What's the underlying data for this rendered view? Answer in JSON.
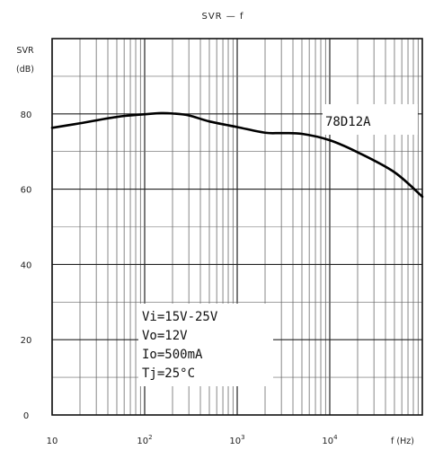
{
  "chart_data": {
    "type": "line",
    "title": "SVR — f",
    "ylabel": "SVR",
    "yunit": "(dB)",
    "xlabel": "f (Hz)",
    "xscale": "log",
    "xlim": [
      10,
      100000
    ],
    "ylim": [
      0,
      100
    ],
    "grid": true,
    "x_ticks": [
      {
        "value": 10,
        "base": "10",
        "exp": ""
      },
      {
        "value": 100,
        "base": "10",
        "exp": "2"
      },
      {
        "value": 1000,
        "base": "10",
        "exp": "3"
      },
      {
        "value": 10000,
        "base": "10",
        "exp": "4"
      }
    ],
    "y_ticks": [
      0,
      20,
      40,
      60,
      80
    ],
    "legend": "78D12A",
    "annotations": [
      "Vi=15V-25V",
      "Vo=12V",
      "Io=500mA",
      "Tj=25°C"
    ],
    "series": [
      {
        "x": [
          10,
          20,
          50,
          100,
          150,
          200,
          300,
          500,
          1000,
          2000,
          3000,
          5000,
          10000,
          20000,
          50000,
          100000
        ],
        "y": [
          76.3,
          77.5,
          79.2,
          79.9,
          80.2,
          80.1,
          79.6,
          78.0,
          76.5,
          75.0,
          74.9,
          74.7,
          73.0,
          69.8,
          64.5,
          58.0
        ]
      }
    ]
  }
}
